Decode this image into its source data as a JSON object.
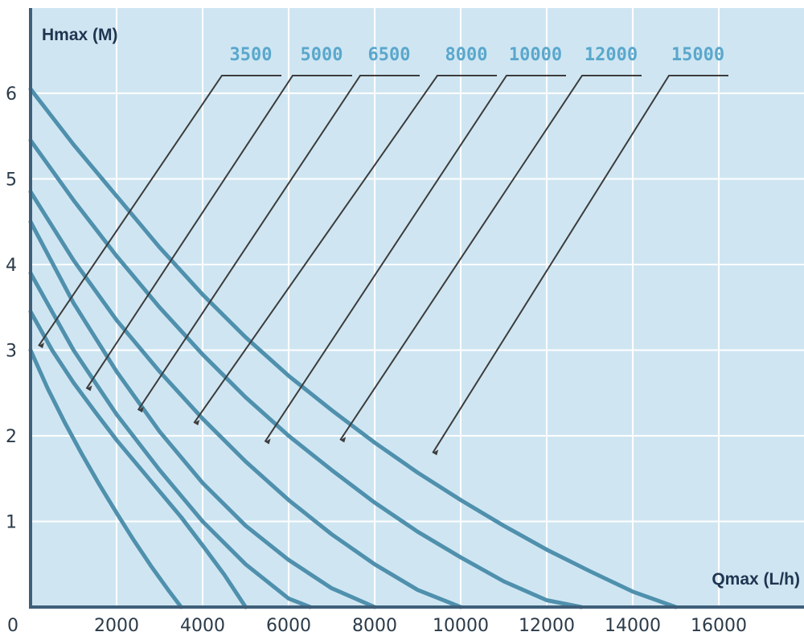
{
  "chart_data": {
    "type": "line",
    "title": "",
    "xlabel": "Qmax (L/h)",
    "ylabel": "Hmax (M)",
    "xlim": [
      0,
      18000
    ],
    "ylim": [
      0,
      6.5
    ],
    "x_ticks": [
      0,
      2000,
      4000,
      6000,
      8000,
      10000,
      12000,
      14000,
      16000
    ],
    "y_ticks": [
      1,
      2,
      3,
      4,
      5,
      6
    ],
    "grid": true,
    "colors": {
      "plot_background": "#cfe6f2",
      "grid": "#ffffff",
      "axis": "#3f5f79",
      "curve": "#4f90ad",
      "label": "#5aa7cc",
      "leader": "#3c3c3c"
    },
    "series": [
      {
        "name": "3500",
        "x": [
          0,
          400,
          800,
          1200,
          1600,
          2000,
          2400,
          2800,
          3200,
          3500
        ],
        "y": [
          3.0,
          2.55,
          2.15,
          1.78,
          1.43,
          1.1,
          0.78,
          0.48,
          0.2,
          0.0
        ]
      },
      {
        "name": "5000",
        "x": [
          0,
          500,
          1000,
          1500,
          2000,
          2500,
          3000,
          3500,
          4000,
          4500,
          5000
        ],
        "y": [
          3.45,
          3.0,
          2.62,
          2.28,
          1.95,
          1.65,
          1.35,
          1.05,
          0.72,
          0.38,
          0.0
        ]
      },
      {
        "name": "6500",
        "x": [
          0,
          1000,
          2000,
          3000,
          4000,
          5000,
          6000,
          6500
        ],
        "y": [
          3.9,
          3.0,
          2.25,
          1.6,
          1.0,
          0.5,
          0.1,
          0.0
        ]
      },
      {
        "name": "8000",
        "x": [
          0,
          1000,
          2000,
          3000,
          4000,
          5000,
          6000,
          7000,
          8000
        ],
        "y": [
          4.5,
          3.55,
          2.75,
          2.05,
          1.45,
          0.95,
          0.55,
          0.22,
          0.0
        ]
      },
      {
        "name": "10000",
        "x": [
          0,
          1000,
          2000,
          3000,
          4000,
          5000,
          6000,
          7000,
          8000,
          9000,
          10000
        ],
        "y": [
          4.85,
          4.05,
          3.35,
          2.75,
          2.2,
          1.7,
          1.25,
          0.85,
          0.5,
          0.2,
          0.0
        ]
      },
      {
        "name": "12000",
        "x": [
          0,
          1000,
          2000,
          3000,
          4000,
          5000,
          6000,
          7000,
          8000,
          9000,
          10000,
          11000,
          12000,
          12800
        ],
        "y": [
          5.45,
          4.75,
          4.1,
          3.5,
          2.95,
          2.45,
          2.0,
          1.6,
          1.22,
          0.88,
          0.58,
          0.3,
          0.08,
          0.0
        ]
      },
      {
        "name": "15000",
        "x": [
          0,
          1000,
          2000,
          3000,
          4000,
          5000,
          6000,
          7000,
          8000,
          9000,
          10000,
          11000,
          12000,
          13000,
          14000,
          15000
        ],
        "y": [
          6.05,
          5.4,
          4.8,
          4.2,
          3.65,
          3.15,
          2.7,
          2.3,
          1.92,
          1.57,
          1.25,
          0.95,
          0.67,
          0.42,
          0.18,
          0.0
        ]
      }
    ],
    "annotations": [
      {
        "series": "3500",
        "x": 0,
        "y": 3.05
      },
      {
        "series": "5000",
        "x": 1300,
        "y": 2.55
      },
      {
        "series": "6500",
        "x": 2500,
        "y": 2.3
      },
      {
        "series": "8000",
        "x": 3800,
        "y": 2.15
      },
      {
        "series": "10000",
        "x": 5450,
        "y": 1.93
      },
      {
        "series": "12000",
        "x": 7200,
        "y": 1.95
      },
      {
        "series": "15000",
        "x": 9350,
        "y": 1.8
      }
    ]
  }
}
